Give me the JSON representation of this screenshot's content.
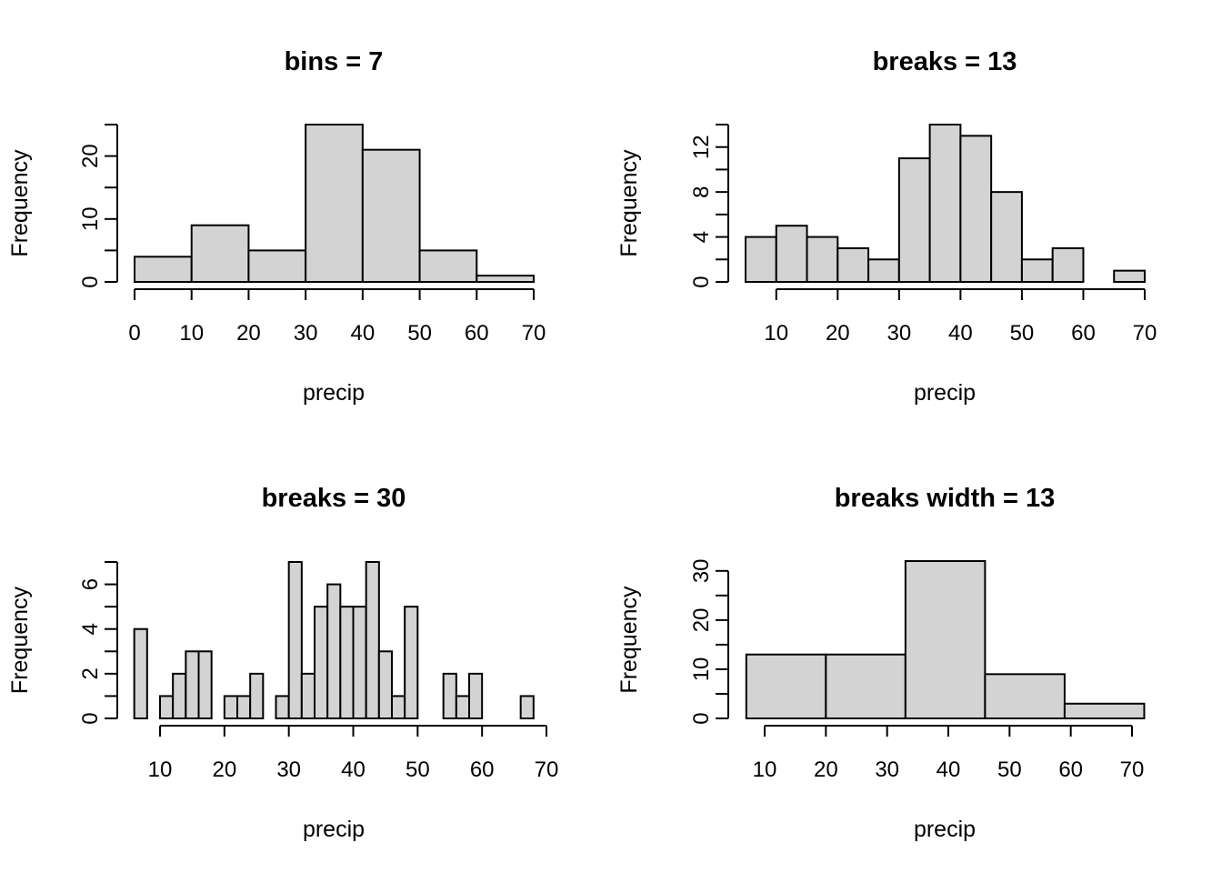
{
  "chart_data": [
    {
      "type": "bar",
      "title": "bins = 7",
      "xlabel": "precip",
      "ylabel": "Frequency",
      "breaks": [
        0,
        10,
        20,
        30,
        40,
        50,
        60,
        70
      ],
      "values": [
        4,
        9,
        5,
        25,
        21,
        5,
        1
      ],
      "xlim": [
        0,
        70
      ],
      "ylim": [
        0,
        25
      ],
      "x_ticks": [
        0,
        10,
        20,
        30,
        40,
        50,
        60,
        70
      ],
      "y_ticks_labeled": [
        0,
        10,
        20
      ],
      "y_ticks_minor": [
        5,
        15,
        25
      ],
      "x_tick_labels": [
        "0",
        "10",
        "20",
        "30",
        "40",
        "50",
        "60",
        "70"
      ],
      "y_tick_labels": [
        "0",
        "10",
        "20"
      ]
    },
    {
      "type": "bar",
      "title": "breaks = 13",
      "xlabel": "precip",
      "ylabel": "Frequency",
      "breaks": [
        5,
        10,
        15,
        20,
        25,
        30,
        35,
        40,
        45,
        50,
        55,
        60,
        65,
        70
      ],
      "values": [
        4,
        5,
        4,
        3,
        2,
        11,
        14,
        13,
        8,
        2,
        3,
        0,
        1
      ],
      "xlim": [
        5,
        70
      ],
      "ylim": [
        0,
        14
      ],
      "x_ticks": [
        10,
        20,
        30,
        40,
        50,
        60,
        70
      ],
      "y_ticks_labeled": [
        0,
        4,
        8,
        12
      ],
      "y_ticks_minor": [
        2,
        6,
        10,
        14
      ],
      "x_tick_labels": [
        "10",
        "20",
        "30",
        "40",
        "50",
        "60",
        "70"
      ],
      "y_tick_labels": [
        "0",
        "4",
        "8",
        "12"
      ]
    },
    {
      "type": "bar",
      "title": "breaks = 30",
      "xlabel": "precip",
      "ylabel": "Frequency",
      "breaks": [
        6,
        8,
        10,
        12,
        14,
        16,
        18,
        20,
        22,
        24,
        26,
        28,
        30,
        32,
        34,
        36,
        38,
        40,
        42,
        44,
        46,
        48,
        50,
        52,
        54,
        56,
        58,
        60,
        62,
        64,
        66,
        68
      ],
      "values": [
        4,
        0,
        1,
        2,
        3,
        3,
        0,
        1,
        1,
        2,
        0,
        1,
        7,
        2,
        5,
        6,
        5,
        5,
        7,
        3,
        1,
        5,
        0,
        0,
        2,
        1,
        2,
        0,
        0,
        0,
        1
      ],
      "xlim": [
        6,
        70
      ],
      "ylim": [
        0,
        7
      ],
      "x_ticks": [
        10,
        20,
        30,
        40,
        50,
        60,
        70
      ],
      "y_ticks_labeled": [
        0,
        2,
        4,
        6
      ],
      "y_ticks_minor": [
        1,
        3,
        5,
        7
      ],
      "x_tick_labels": [
        "10",
        "20",
        "30",
        "40",
        "50",
        "60",
        "70"
      ],
      "y_tick_labels": [
        "0",
        "2",
        "4",
        "6"
      ]
    },
    {
      "type": "bar",
      "title": "breaks width = 13",
      "xlabel": "precip",
      "ylabel": "Frequency",
      "breaks": [
        7,
        20,
        33,
        46,
        59,
        72
      ],
      "values": [
        13,
        13,
        32,
        9,
        3
      ],
      "xlim": [
        7,
        72
      ],
      "ylim": [
        0,
        32
      ],
      "x_ticks": [
        10,
        20,
        30,
        40,
        50,
        60,
        70
      ],
      "y_ticks_labeled": [
        0,
        10,
        20,
        30
      ],
      "y_ticks_minor": [
        5,
        15,
        25
      ],
      "x_tick_labels": [
        "10",
        "20",
        "30",
        "40",
        "50",
        "60",
        "70"
      ],
      "y_tick_labels": [
        "0",
        "10",
        "20",
        "30"
      ]
    }
  ]
}
